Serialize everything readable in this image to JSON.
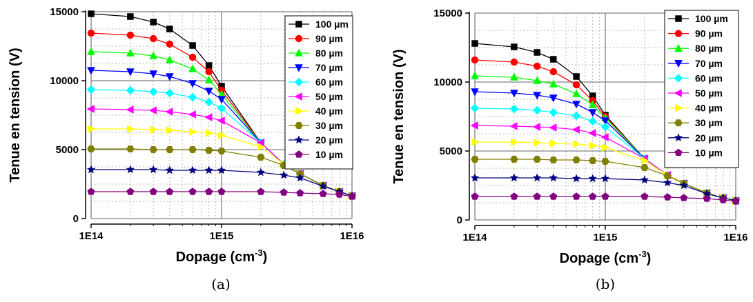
{
  "chart_data": [
    {
      "type": "line",
      "caption": "(a)",
      "xlabel": "Dopage (cm",
      "xlabel_sup": "-3",
      "xlabel_end": ")",
      "ylabel": "Tenue en tension (V)",
      "xscale": "log",
      "xlim": [
        100000000000000.0,
        1e+16
      ],
      "ylim": [
        0,
        15000
      ],
      "x_ticks": [
        100000000000000.0,
        1000000000000000.0,
        1e+16
      ],
      "x_tick_labels": [
        "1E14",
        "1E15",
        "1E16"
      ],
      "y_ticks": [
        0,
        5000,
        10000,
        15000
      ],
      "y_tick_labels": [
        "0",
        "5000",
        "10000",
        "15000"
      ],
      "grid": true,
      "legend_position": "top-right",
      "x": [
        100000000000000.0,
        200000000000000.0,
        300000000000000.0,
        400000000000000.0,
        600000000000000.0,
        800000000000000.0,
        1000000000000000.0,
        2000000000000000.0,
        3000000000000000.0,
        4000000000000000.0,
        6000000000000000.0,
        8000000000000000.0,
        1e+16
      ],
      "series": [
        {
          "name": "100 µm",
          "color": "#000000",
          "marker": "square",
          "values": [
            14850,
            14650,
            14250,
            13750,
            12550,
            11100,
            9600,
            5500,
            3950,
            3250,
            2400,
            1950,
            1650
          ]
        },
        {
          "name": "90 µm",
          "color": "#ff0000",
          "marker": "circle",
          "values": [
            13450,
            13300,
            13050,
            12650,
            11700,
            10650,
            9300,
            5500,
            3950,
            3250,
            2400,
            1950,
            1650
          ]
        },
        {
          "name": "80 µm",
          "color": "#00ff00",
          "marker": "triangle-up",
          "values": [
            12100,
            12000,
            11800,
            11500,
            10850,
            10050,
            9000,
            5500,
            3950,
            3250,
            2400,
            1950,
            1650
          ]
        },
        {
          "name": "70 µm",
          "color": "#0000ff",
          "marker": "triangle-down",
          "values": [
            10750,
            10650,
            10500,
            10300,
            9800,
            9250,
            8650,
            5500,
            3950,
            3250,
            2400,
            1950,
            1650
          ]
        },
        {
          "name": "60 µm",
          "color": "#00ffff",
          "marker": "diamond",
          "values": [
            9350,
            9300,
            9200,
            9100,
            8800,
            8450,
            8000,
            5500,
            3950,
            3250,
            2400,
            1950,
            1650
          ]
        },
        {
          "name": "50 µm",
          "color": "#ff00ff",
          "marker": "triangle-left",
          "values": [
            7950,
            7900,
            7850,
            7750,
            7550,
            7350,
            7100,
            5500,
            3950,
            3250,
            2400,
            1950,
            1650
          ]
        },
        {
          "name": "40 µm",
          "color": "#ffff00",
          "marker": "triangle-right",
          "values": [
            6500,
            6500,
            6450,
            6400,
            6300,
            6200,
            6050,
            5200,
            3950,
            3250,
            2400,
            1950,
            1650
          ]
        },
        {
          "name": "30 µm",
          "color": "#808000",
          "marker": "hexagon",
          "values": [
            5050,
            5050,
            5000,
            5000,
            5000,
            4950,
            4900,
            4450,
            3850,
            3250,
            2400,
            1950,
            1650
          ]
        },
        {
          "name": "20 µm",
          "color": "#000080",
          "marker": "star",
          "values": [
            3550,
            3550,
            3550,
            3500,
            3500,
            3500,
            3500,
            3350,
            3150,
            2950,
            2350,
            1950,
            1650
          ]
        },
        {
          "name": "10 µm",
          "color": "#800080",
          "marker": "pentagon",
          "values": [
            1950,
            1950,
            1950,
            1950,
            1950,
            1950,
            1950,
            1950,
            1900,
            1850,
            1800,
            1750,
            1600
          ]
        }
      ]
    },
    {
      "type": "line",
      "caption": "(b)",
      "xlabel": "Dopage (cm",
      "xlabel_sup": "-3",
      "xlabel_end": ")",
      "ylabel": "Tenue en tension (V)",
      "xscale": "log",
      "xlim": [
        100000000000000.0,
        1e+16
      ],
      "ylim": [
        0,
        15000
      ],
      "x_ticks": [
        100000000000000.0,
        1000000000000000.0,
        1e+16
      ],
      "x_tick_labels": [
        "1E14",
        "1E15",
        "1E16"
      ],
      "y_ticks": [
        0,
        5000,
        10000,
        15000
      ],
      "y_tick_labels": [
        "0",
        "5000",
        "10000",
        "15000"
      ],
      "grid": true,
      "legend_position": "top-right",
      "x": [
        100000000000000.0,
        200000000000000.0,
        300000000000000.0,
        400000000000000.0,
        600000000000000.0,
        800000000000000.0,
        1000000000000000.0,
        2000000000000000.0,
        3000000000000000.0,
        4000000000000000.0,
        6000000000000000.0,
        8000000000000000.0,
        1e+16
      ],
      "series": [
        {
          "name": "100 µm",
          "color": "#000000",
          "marker": "square",
          "values": [
            12800,
            12550,
            12150,
            11650,
            10400,
            9000,
            7600,
            4450,
            3250,
            2650,
            1950,
            1600,
            1400
          ]
        },
        {
          "name": "90 µm",
          "color": "#ff0000",
          "marker": "circle",
          "values": [
            11600,
            11450,
            11150,
            10750,
            9800,
            8650,
            7500,
            4450,
            3250,
            2650,
            1950,
            1600,
            1400
          ]
        },
        {
          "name": "80 µm",
          "color": "#00ff00",
          "marker": "triangle-up",
          "values": [
            10450,
            10350,
            10100,
            9850,
            9150,
            8350,
            7400,
            4450,
            3250,
            2650,
            1950,
            1600,
            1400
          ]
        },
        {
          "name": "70 µm",
          "color": "#0000ff",
          "marker": "triangle-down",
          "values": [
            9300,
            9200,
            9050,
            8850,
            8400,
            7800,
            7200,
            4450,
            3250,
            2650,
            1950,
            1600,
            1400
          ]
        },
        {
          "name": "60 µm",
          "color": "#00ffff",
          "marker": "diamond",
          "values": [
            8100,
            8050,
            7950,
            7800,
            7550,
            7150,
            6750,
            4450,
            3250,
            2650,
            1950,
            1600,
            1400
          ]
        },
        {
          "name": "50 µm",
          "color": "#ff00ff",
          "marker": "triangle-left",
          "values": [
            6850,
            6800,
            6750,
            6700,
            6550,
            6300,
            6000,
            4450,
            3250,
            2650,
            1950,
            1600,
            1400
          ]
        },
        {
          "name": "40 µm",
          "color": "#ffff00",
          "marker": "triangle-right",
          "values": [
            5650,
            5650,
            5600,
            5550,
            5500,
            5400,
            5250,
            4300,
            3250,
            2650,
            1950,
            1600,
            1400
          ]
        },
        {
          "name": "30 µm",
          "color": "#808000",
          "marker": "hexagon",
          "values": [
            4400,
            4400,
            4400,
            4350,
            4350,
            4300,
            4250,
            3800,
            3200,
            2650,
            1950,
            1600,
            1400
          ]
        },
        {
          "name": "20 µm",
          "color": "#000080",
          "marker": "star",
          "values": [
            3050,
            3050,
            3050,
            3050,
            3000,
            3000,
            3000,
            2900,
            2700,
            2500,
            1900,
            1600,
            1400
          ]
        },
        {
          "name": "10 µm",
          "color": "#800080",
          "marker": "pentagon",
          "values": [
            1700,
            1700,
            1700,
            1700,
            1700,
            1700,
            1700,
            1700,
            1650,
            1600,
            1550,
            1450,
            1350
          ]
        }
      ]
    }
  ]
}
